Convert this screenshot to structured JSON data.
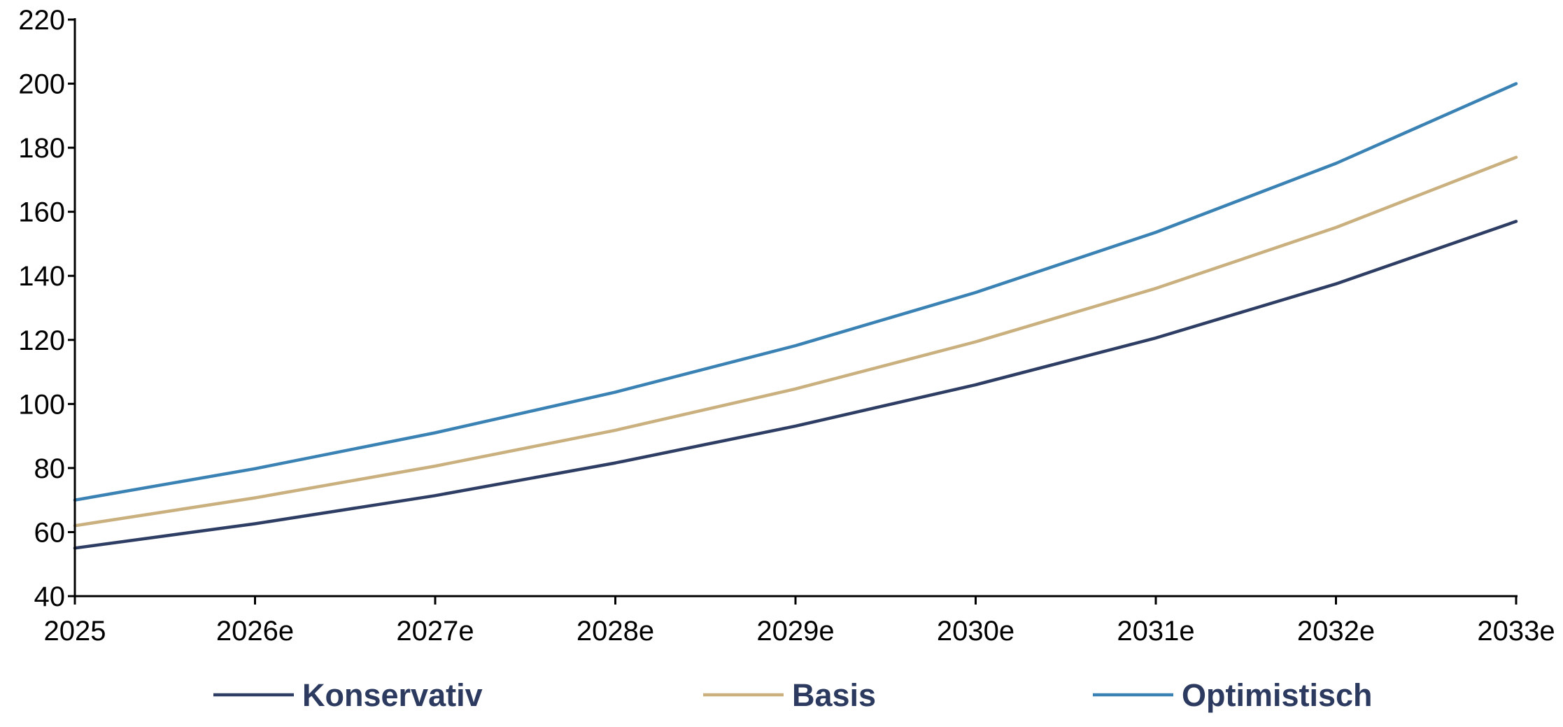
{
  "chart_data": {
    "type": "line",
    "x": [
      "2025",
      "2026e",
      "2027e",
      "2028e",
      "2029e",
      "2030e",
      "2031e",
      "2032e",
      "2033e"
    ],
    "ylim": [
      40,
      220
    ],
    "yticks": [
      40,
      60,
      80,
      100,
      120,
      140,
      160,
      180,
      200,
      220
    ],
    "grid": false,
    "legend_position": "bottom",
    "series": [
      {
        "name": "Konservativ",
        "color": "#2e3d63",
        "values": [
          55,
          62.6,
          71.4,
          81.6,
          93.1,
          106.0,
          120.6,
          137.5,
          157.0
        ]
      },
      {
        "name": "Basis",
        "color": "#c9b07e",
        "values": [
          62,
          70.7,
          80.6,
          91.8,
          104.7,
          119.4,
          136.1,
          155.1,
          177.0
        ]
      },
      {
        "name": "Optimistisch",
        "color": "#3b82b4",
        "values": [
          70,
          79.8,
          91.0,
          103.7,
          118.2,
          134.8,
          153.6,
          175.1,
          200.0
        ]
      }
    ]
  }
}
